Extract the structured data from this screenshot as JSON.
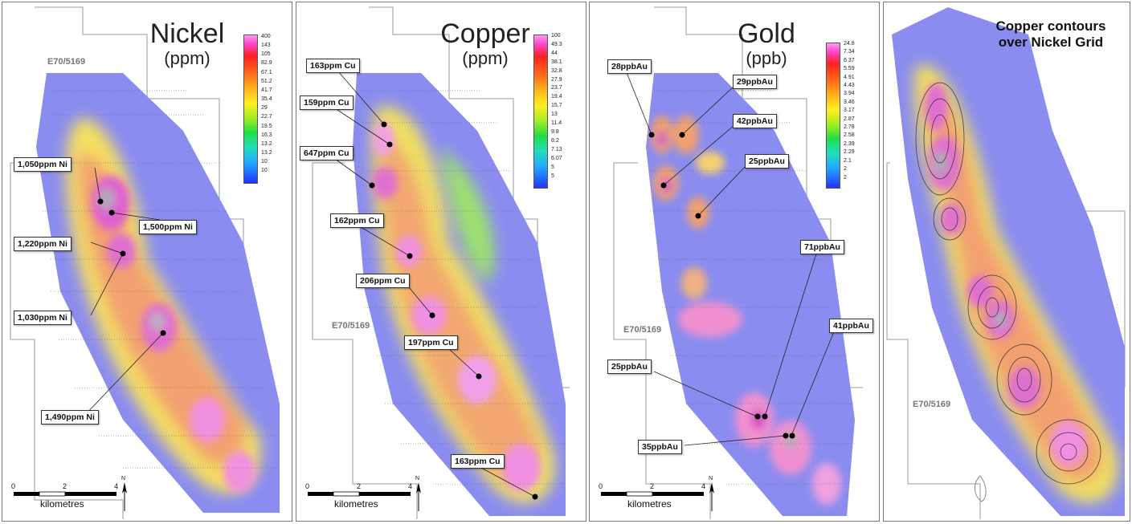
{
  "panels": [
    {
      "title": "Nickel",
      "unit": "(ppm)",
      "tenement": "E70/5169",
      "legend": [
        "400",
        "143",
        "105",
        "82.9",
        "67.1",
        "51.2",
        "41.7",
        "35.4",
        "29",
        "22.7",
        "19.5",
        "16.3",
        "13.2",
        "13.2",
        "10",
        "10"
      ],
      "callouts": [
        "1,050ppm Ni",
        "1,500ppm Ni",
        "1,220ppm Ni",
        "1,030ppm Ni",
        "1,490ppm Ni"
      ],
      "scale": {
        "ticks": [
          "0",
          "2",
          "4"
        ],
        "units": "kilometres",
        "north": "N"
      }
    },
    {
      "title": "Copper",
      "unit": "(ppm)",
      "tenement": "E70/5169",
      "legend": [
        "100",
        "49.3",
        "44",
        "38.1",
        "32.8",
        "27.9",
        "23.7",
        "19.4",
        "15.7",
        "13",
        "11.4",
        "9.8",
        "8.2",
        "7.13",
        "6.07",
        "5",
        "5"
      ],
      "callouts": [
        "163ppm Cu",
        "159ppm Cu",
        "647ppm Cu",
        "162ppm Cu",
        "206ppm Cu",
        "197ppm Cu",
        "163ppm Cu"
      ],
      "scale": {
        "ticks": [
          "0",
          "2",
          "4"
        ],
        "units": "kilometres",
        "north": "N"
      }
    },
    {
      "title": "Gold",
      "unit": "(ppb)",
      "tenement": "E70/5169",
      "legend": [
        "24.8",
        "7.34",
        "6.37",
        "5.59",
        "4.91",
        "4.43",
        "3.94",
        "3.46",
        "3.17",
        "2.87",
        "2.78",
        "2.58",
        "2.39",
        "2.29",
        "2.1",
        "2",
        "2"
      ],
      "callouts": [
        "28ppbAu",
        "29ppbAu",
        "42ppbAu",
        "25ppbAu",
        "71ppbAu",
        "41ppbAu",
        "25ppbAu",
        "35ppbAu"
      ],
      "scale": {
        "ticks": [
          "0",
          "2",
          "4"
        ],
        "units": "kilometres",
        "north": "N"
      }
    },
    {
      "title_line1": "Copper contours",
      "title_line2": "over Nickel Grid",
      "tenement": "E70/5169"
    }
  ]
}
